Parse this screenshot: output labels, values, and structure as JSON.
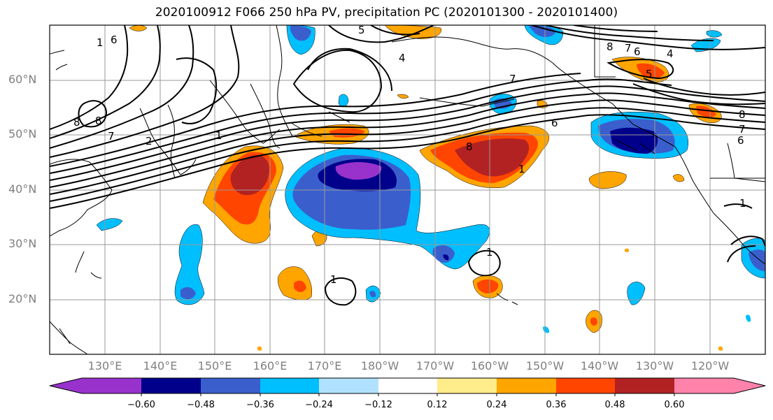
{
  "title": "2020100912 F066 250 hPa PV, precipitation PC (2020101300 - 2020101400)",
  "lat_labels": [
    "60°N",
    "50°N",
    "40°N",
    "30°N",
    "20°N"
  ],
  "lon_labels": [
    "130°E",
    "140°E",
    "150°E",
    "160°E",
    "170°E",
    "180°W",
    "170°W",
    "160°W",
    "150°W",
    "140°W",
    "130°W",
    "120°W"
  ],
  "colorbar": {
    "colors": [
      "#9932cc",
      "#00008b",
      "#3a5fcd",
      "#00bfff",
      "#b0e2ff",
      "#ffffff",
      "#ffec8b",
      "#ffa500",
      "#ff4500",
      "#b22222",
      "#ff82ab"
    ],
    "tick_labels": [
      "−0.60",
      "−0.48",
      "−0.36",
      "−0.24",
      "−0.12",
      "0.12",
      "0.24",
      "0.36",
      "0.48",
      "0.60"
    ]
  },
  "contour_labels": [
    "1",
    "2",
    "4",
    "5",
    "6",
    "7",
    "8"
  ]
}
